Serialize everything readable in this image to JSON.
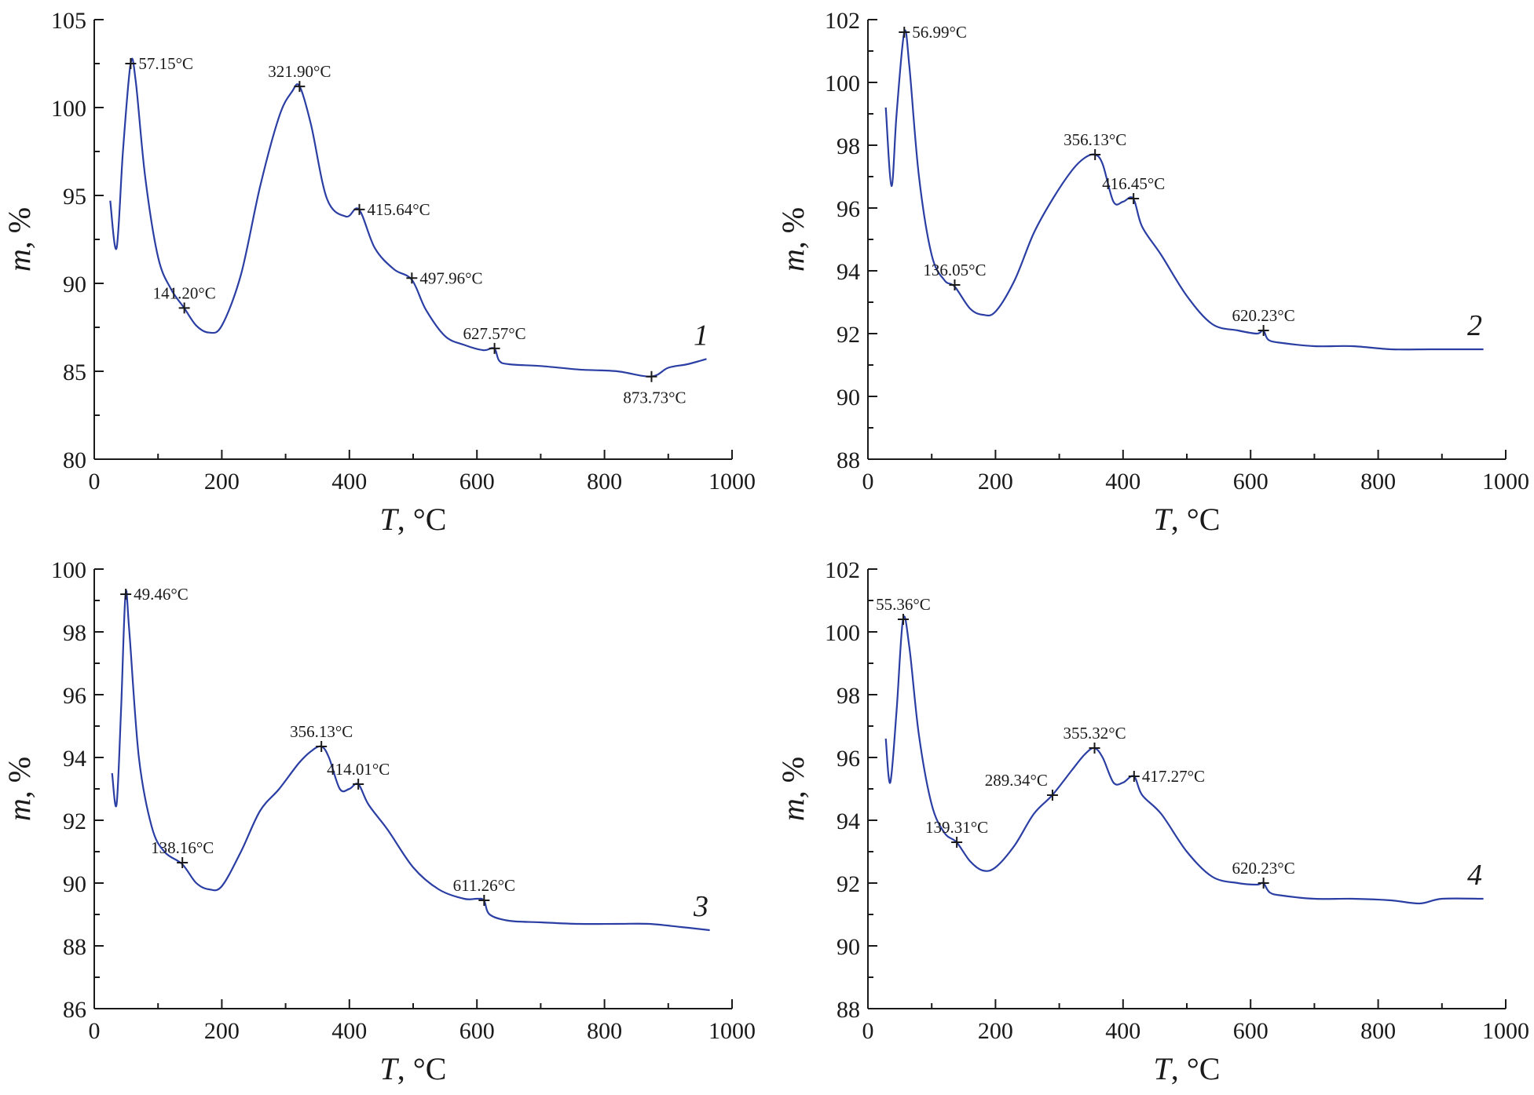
{
  "colors": {
    "line": "#2b3ea3",
    "axis": "#1a1a1a",
    "marker": "#1a1a1a"
  },
  "chart_data": [
    {
      "type": "line",
      "panel_label": "1",
      "xlabel": "T",
      "xlabel_unit": ", °C",
      "ylabel": "m",
      "ylabel_unit": ", %",
      "xlim": [
        0,
        1000
      ],
      "ylim": [
        80,
        105
      ],
      "xticks": [
        0,
        200,
        400,
        600,
        800,
        1000
      ],
      "yticks": [
        80,
        85,
        90,
        95,
        100,
        105
      ],
      "series": [
        {
          "name": "1",
          "x": [
            25,
            35,
            45,
            57,
            65,
            80,
            100,
            120,
            141,
            160,
            180,
            200,
            230,
            260,
            290,
            310,
            322,
            340,
            365,
            395,
            415,
            440,
            470,
            498,
            520,
            550,
            580,
            610,
            627,
            635,
            650,
            700,
            760,
            820,
            873,
            900,
            930,
            960
          ],
          "y": [
            94.7,
            92.0,
            97.5,
            102.5,
            101.5,
            96.0,
            91.5,
            89.7,
            88.6,
            87.6,
            87.2,
            87.6,
            90.5,
            95.5,
            99.5,
            100.9,
            101.2,
            99.0,
            94.8,
            93.8,
            94.2,
            92.0,
            90.8,
            90.2,
            88.5,
            87.0,
            86.5,
            86.2,
            86.3,
            85.6,
            85.4,
            85.3,
            85.1,
            85.0,
            84.7,
            85.2,
            85.4,
            85.7
          ]
        }
      ],
      "annotations": [
        {
          "x": 57.15,
          "y": 102.5,
          "label": "57.15°C",
          "pos": "right"
        },
        {
          "x": 141.2,
          "y": 88.6,
          "label": "141.20°C",
          "pos": "above"
        },
        {
          "x": 321.9,
          "y": 101.2,
          "label": "321.90°C",
          "pos": "above"
        },
        {
          "x": 415.64,
          "y": 94.2,
          "label": "415.64°C",
          "pos": "right"
        },
        {
          "x": 497.96,
          "y": 90.3,
          "label": "497.96°C",
          "pos": "right"
        },
        {
          "x": 627.57,
          "y": 86.3,
          "label": "627.57°C",
          "pos": "above"
        },
        {
          "x": 873.73,
          "y": 84.7,
          "label": "873.73°C",
          "pos": "below"
        }
      ]
    },
    {
      "type": "line",
      "panel_label": "2",
      "xlabel": "T",
      "xlabel_unit": ", °C",
      "ylabel": "m",
      "ylabel_unit": ", %",
      "xlim": [
        0,
        1000
      ],
      "ylim": [
        88,
        102
      ],
      "xticks": [
        0,
        200,
        400,
        600,
        800,
        1000
      ],
      "yticks": [
        88,
        90,
        92,
        94,
        96,
        98,
        100,
        102
      ],
      "series": [
        {
          "name": "2",
          "x": [
            28,
            37,
            45,
            57,
            65,
            80,
            100,
            120,
            136,
            160,
            180,
            200,
            230,
            260,
            290,
            320,
            340,
            356,
            368,
            385,
            400,
            416,
            430,
            460,
            500,
            540,
            580,
            610,
            620,
            628,
            650,
            700,
            760,
            820,
            880,
            930,
            965
          ],
          "y": [
            99.2,
            96.7,
            99.0,
            101.6,
            100.5,
            97.0,
            94.5,
            93.7,
            93.5,
            92.8,
            92.6,
            92.7,
            93.7,
            95.2,
            96.3,
            97.2,
            97.6,
            97.7,
            97.4,
            96.2,
            96.2,
            96.3,
            95.4,
            94.5,
            93.2,
            92.3,
            92.1,
            92.0,
            92.1,
            91.8,
            91.7,
            91.6,
            91.6,
            91.5,
            91.5,
            91.5,
            91.5
          ]
        }
      ],
      "annotations": [
        {
          "x": 56.99,
          "y": 101.6,
          "label": "56.99°C",
          "pos": "right"
        },
        {
          "x": 136.05,
          "y": 93.55,
          "label": "136.05°C",
          "pos": "above"
        },
        {
          "x": 356.13,
          "y": 97.7,
          "label": "356.13°C",
          "pos": "above"
        },
        {
          "x": 416.45,
          "y": 96.3,
          "label": "416.45°C",
          "pos": "above"
        },
        {
          "x": 620.23,
          "y": 92.1,
          "label": "620.23°C",
          "pos": "above"
        }
      ]
    },
    {
      "type": "line",
      "panel_label": "3",
      "xlabel": "T",
      "xlabel_unit": ", °C",
      "ylabel": "m",
      "ylabel_unit": ", %",
      "xlim": [
        0,
        1000
      ],
      "ylim": [
        86,
        100
      ],
      "xticks": [
        0,
        200,
        400,
        600,
        800,
        1000
      ],
      "yticks": [
        86,
        88,
        90,
        92,
        94,
        96,
        98,
        100
      ],
      "series": [
        {
          "name": "3",
          "x": [
            28,
            35,
            42,
            49,
            55,
            70,
            90,
            110,
            138,
            160,
            180,
            200,
            230,
            260,
            290,
            320,
            340,
            356,
            368,
            385,
            400,
            414,
            430,
            460,
            500,
            540,
            580,
            600,
            611,
            620,
            650,
            700,
            760,
            820,
            870,
            920,
            965
          ],
          "y": [
            93.5,
            92.5,
            95.5,
            99.2,
            98.0,
            94.0,
            91.8,
            91.0,
            90.6,
            90.0,
            89.8,
            89.9,
            91.0,
            92.3,
            93.0,
            93.8,
            94.2,
            94.35,
            94.0,
            93.0,
            93.0,
            93.15,
            92.5,
            91.7,
            90.5,
            89.8,
            89.5,
            89.5,
            89.45,
            89.0,
            88.8,
            88.75,
            88.7,
            88.7,
            88.7,
            88.6,
            88.5
          ]
        }
      ],
      "annotations": [
        {
          "x": 49.46,
          "y": 99.2,
          "label": "49.46°C",
          "pos": "right"
        },
        {
          "x": 138.16,
          "y": 90.65,
          "label": "138.16°C",
          "pos": "above"
        },
        {
          "x": 356.13,
          "y": 94.35,
          "label": "356.13°C",
          "pos": "above"
        },
        {
          "x": 414.01,
          "y": 93.15,
          "label": "414.01°C",
          "pos": "above"
        },
        {
          "x": 611.26,
          "y": 89.45,
          "label": "611.26°C",
          "pos": "above"
        }
      ]
    },
    {
      "type": "line",
      "panel_label": "4",
      "xlabel": "T",
      "xlabel_unit": ", °C",
      "ylabel": "m",
      "ylabel_unit": ", %",
      "xlim": [
        0,
        1000
      ],
      "ylim": [
        88,
        102
      ],
      "xticks": [
        0,
        200,
        400,
        600,
        800,
        1000
      ],
      "yticks": [
        88,
        90,
        92,
        94,
        96,
        98,
        100,
        102
      ],
      "series": [
        {
          "name": "4",
          "x": [
            28,
            35,
            45,
            55,
            65,
            80,
            100,
            120,
            139,
            160,
            180,
            200,
            230,
            260,
            289,
            320,
            340,
            355,
            368,
            385,
            400,
            417,
            430,
            460,
            500,
            540,
            580,
            610,
            620,
            630,
            650,
            700,
            760,
            820,
            865,
            900,
            965
          ],
          "y": [
            96.6,
            95.2,
            97.5,
            100.4,
            99.5,
            96.7,
            94.5,
            93.6,
            93.3,
            92.7,
            92.4,
            92.5,
            93.2,
            94.2,
            94.8,
            95.6,
            96.1,
            96.3,
            96.0,
            95.2,
            95.2,
            95.4,
            94.8,
            94.2,
            93.0,
            92.2,
            92.0,
            91.95,
            92.0,
            91.7,
            91.6,
            91.5,
            91.5,
            91.45,
            91.35,
            91.5,
            91.5
          ]
        }
      ],
      "annotations": [
        {
          "x": 55.36,
          "y": 100.4,
          "label": "55.36°C",
          "pos": "above"
        },
        {
          "x": 139.31,
          "y": 93.3,
          "label": "139.31°C",
          "pos": "above"
        },
        {
          "x": 289.34,
          "y": 94.8,
          "label": "289.34°C",
          "pos": "aboveleft"
        },
        {
          "x": 355.32,
          "y": 96.3,
          "label": "355.32°C",
          "pos": "above"
        },
        {
          "x": 417.27,
          "y": 95.4,
          "label": "417.27°C",
          "pos": "right"
        },
        {
          "x": 620.23,
          "y": 92.0,
          "label": "620.23°C",
          "pos": "above"
        }
      ]
    }
  ]
}
